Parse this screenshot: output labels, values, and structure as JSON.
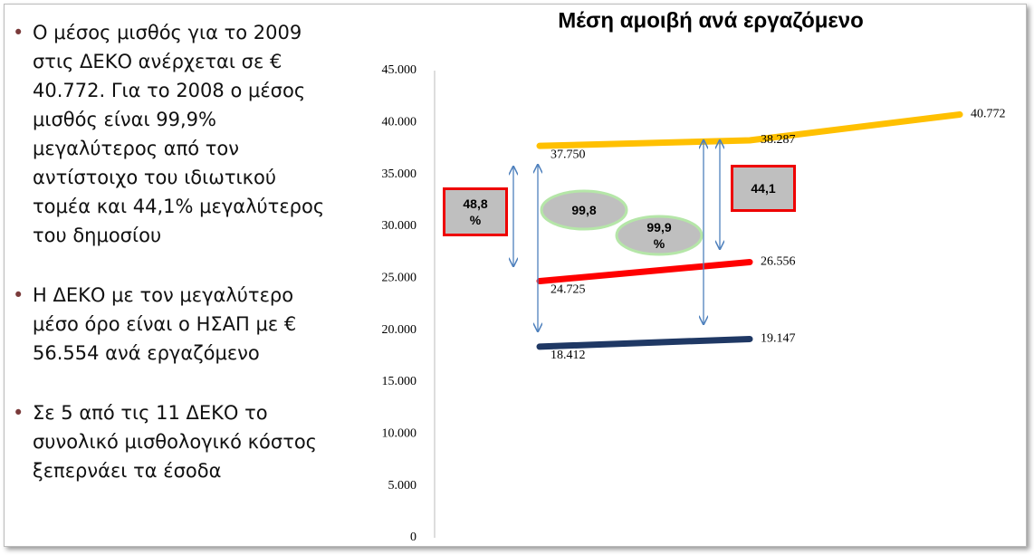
{
  "bullets": [
    "Ο μέσος μισθός για το 2009 στις ΔΕΚΟ ανέρχεται σε € 40.772. Για το 2008 ο μέσος μισθός είναι 99,9% μεγαλύτερος από τον αντίστοιχο του ιδιωτικού τομέα και 44,1% μεγαλύτερος του δημοσίου",
    "Η ΔΕΚΟ με τον μεγαλύτερο μέσο όρο είναι ο ΗΣΑΠ με € 56.554 ανά εργαζόμενο",
    "Σε 5 από τις 11 ΔΕΚΟ το συνολικό μισθολογικό κόστος ξεπερνάει τα έσοδα"
  ],
  "chart_data": {
    "type": "line",
    "title": "Μέση αμοιβή ανά εργαζόμενο",
    "categories": [
      null,
      null,
      null
    ],
    "series": [
      {
        "color": "#ffc000",
        "values": [
          37750,
          38287,
          40772
        ],
        "value_labels": [
          "37.750",
          "38.287",
          "40.772"
        ]
      },
      {
        "color": "#ff0000",
        "values": [
          24725,
          26556,
          null
        ],
        "value_labels": [
          "24.725",
          "26.556",
          null
        ]
      },
      {
        "color": "#1f3864",
        "values": [
          18412,
          19147,
          null
        ],
        "value_labels": [
          "18.412",
          "19.147",
          null
        ]
      }
    ],
    "ylim": [
      0,
      45000
    ],
    "yticks": [
      0,
      {
        "value": 5000,
        "label": "5.000"
      },
      {
        "value": 10000,
        "label": "10.000"
      },
      {
        "value": 15000,
        "label": "15.000"
      },
      {
        "value": 20000,
        "label": "20.000"
      },
      {
        "value": 25000,
        "label": "25.000"
      },
      {
        "value": 30000,
        "label": "30.000"
      },
      {
        "value": 35000,
        "label": "35.000"
      },
      {
        "value": 40000,
        "label": "40.000"
      },
      {
        "value": 45000,
        "label": "45.000"
      }
    ],
    "annotations": [
      "48,8 %",
      "99,8",
      "99,9 %",
      "44,1"
    ]
  }
}
